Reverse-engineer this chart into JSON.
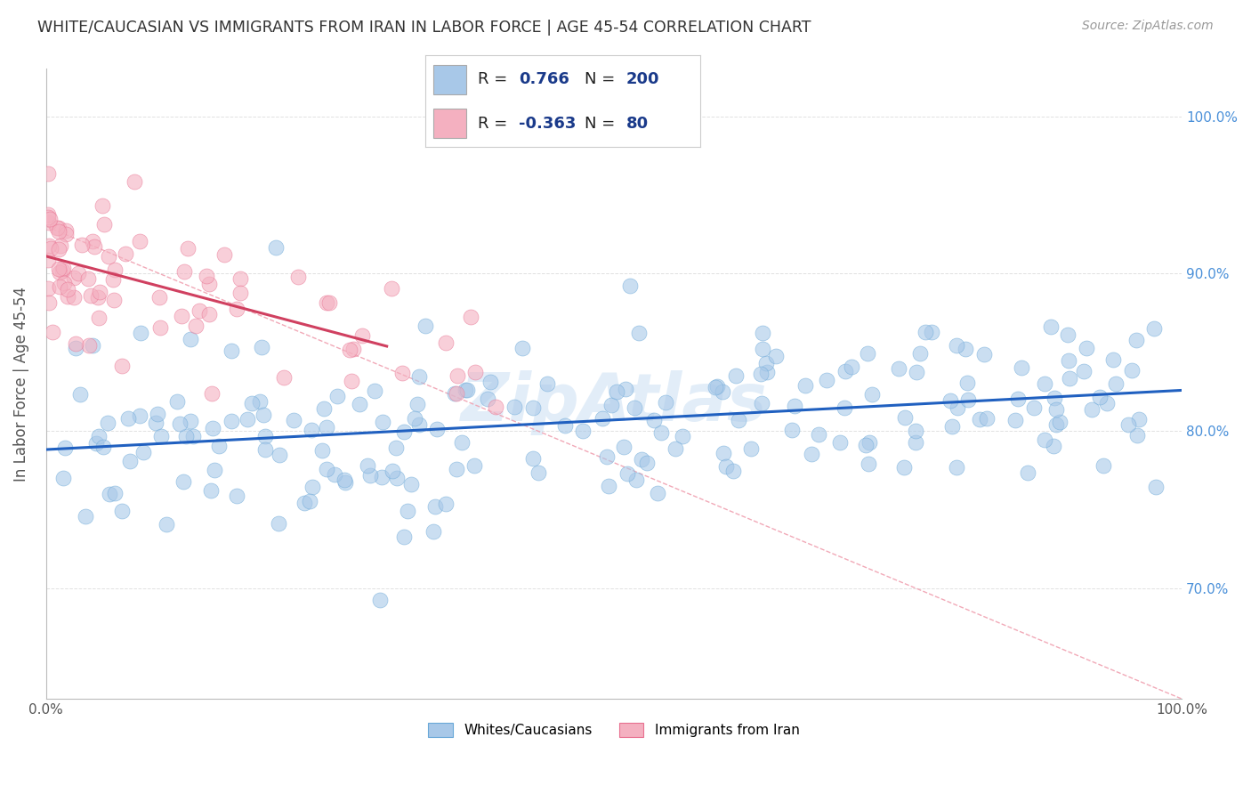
{
  "title": "WHITE/CAUCASIAN VS IMMIGRANTS FROM IRAN IN LABOR FORCE | AGE 45-54 CORRELATION CHART",
  "source": "Source: ZipAtlas.com",
  "ylabel": "In Labor Force | Age 45-54",
  "legend_labels": [
    "Whites/Caucasians",
    "Immigrants from Iran"
  ],
  "blue_color": "#a8c8e8",
  "blue_edge_color": "#6aa8d8",
  "pink_color": "#f4b0c0",
  "pink_edge_color": "#e87090",
  "blue_line_color": "#2060c0",
  "pink_line_color": "#d04060",
  "dash_line_color": "#f0a0b0",
  "watermark": "ZipAtlas",
  "blue_r": 0.766,
  "pink_r": -0.363,
  "blue_n": 200,
  "pink_n": 80,
  "xlim": [
    0,
    100
  ],
  "ylim": [
    63,
    103
  ],
  "background_color": "#ffffff",
  "grid_color": "#cccccc",
  "title_color": "#333333",
  "axis_label_color": "#555555",
  "tick_color": "#555555",
  "legend_text_color": "#1a3a8a",
  "right_tick_color": "#4a90d9"
}
